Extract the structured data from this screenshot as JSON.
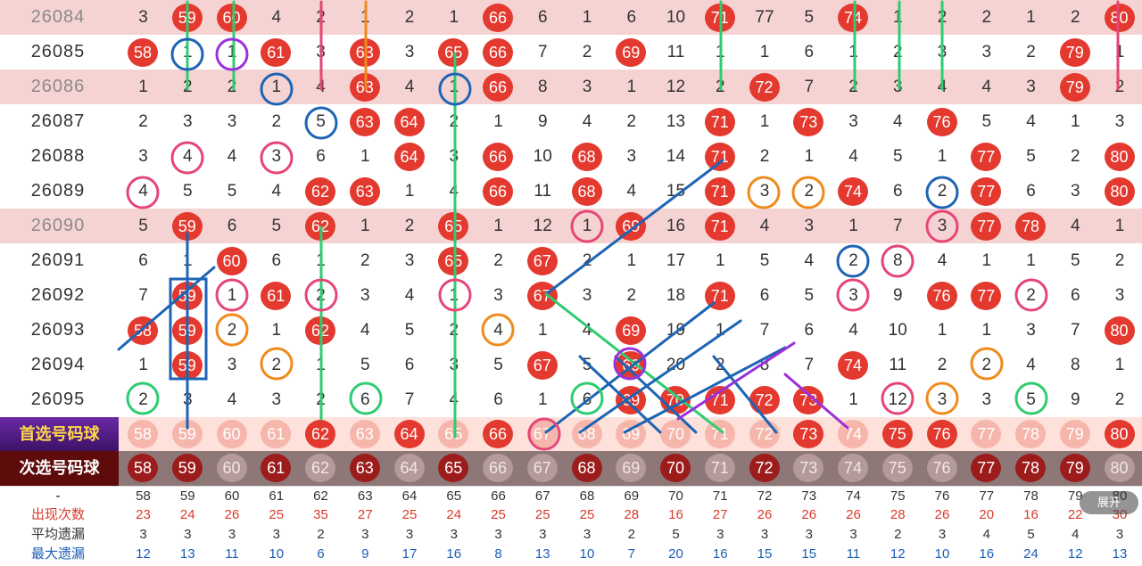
{
  "columns": [
    "58",
    "59",
    "60",
    "61",
    "62",
    "63",
    "64",
    "65",
    "66",
    "67",
    "68",
    "69",
    "70",
    "71",
    "72",
    "73",
    "74",
    "75",
    "76",
    "77",
    "78",
    "79",
    "80"
  ],
  "rows": [
    {
      "period": "26084",
      "style": "pink",
      "cells": [
        "3",
        "59",
        "60",
        "4",
        "2",
        "1",
        "2",
        "1",
        "66",
        "6",
        "1",
        "6",
        "10",
        "71",
        "77",
        "5",
        "74",
        "1",
        "2",
        "2",
        "1",
        "2",
        "80"
      ]
    },
    {
      "period": "26085",
      "style": "white",
      "cells": [
        "58",
        "1",
        "1",
        "61",
        "3",
        "63",
        "3",
        "65",
        "66",
        "7",
        "2",
        "69",
        "11",
        "1",
        "1",
        "6",
        "1",
        "2",
        "3",
        "3",
        "2",
        "79",
        "1"
      ]
    },
    {
      "period": "26086",
      "style": "pink",
      "cells": [
        "1",
        "2",
        "2",
        "1",
        "4",
        "63",
        "4",
        "1",
        "66",
        "8",
        "3",
        "1",
        "12",
        "2",
        "72",
        "7",
        "2",
        "3",
        "4",
        "4",
        "3",
        "79",
        "2"
      ]
    },
    {
      "period": "26087",
      "style": "white",
      "cells": [
        "2",
        "3",
        "3",
        "2",
        "5",
        "63",
        "64",
        "2",
        "1",
        "9",
        "4",
        "2",
        "13",
        "71",
        "1",
        "73",
        "3",
        "4",
        "76",
        "5",
        "4",
        "1",
        "3"
      ]
    },
    {
      "period": "26088",
      "style": "white",
      "cells": [
        "3",
        "4",
        "4",
        "3",
        "6",
        "1",
        "64",
        "3",
        "66",
        "10",
        "68",
        "3",
        "14",
        "71",
        "2",
        "1",
        "4",
        "5",
        "1",
        "77",
        "5",
        "2",
        "80"
      ]
    },
    {
      "period": "26089",
      "style": "white",
      "cells": [
        "4",
        "5",
        "5",
        "4",
        "62",
        "63",
        "1",
        "4",
        "66",
        "11",
        "68",
        "4",
        "15",
        "71",
        "3",
        "2",
        "74",
        "6",
        "2",
        "77",
        "6",
        "3",
        "80"
      ]
    },
    {
      "period": "26090",
      "style": "pink",
      "cells": [
        "5",
        "59",
        "6",
        "5",
        "62",
        "1",
        "2",
        "65",
        "1",
        "12",
        "1",
        "69",
        "16",
        "71",
        "4",
        "3",
        "1",
        "7",
        "3",
        "77",
        "78",
        "4",
        "1"
      ]
    },
    {
      "period": "26091",
      "style": "white",
      "cells": [
        "6",
        "1",
        "60",
        "6",
        "1",
        "2",
        "3",
        "65",
        "2",
        "67",
        "2",
        "1",
        "17",
        "1",
        "5",
        "4",
        "2",
        "8",
        "4",
        "1",
        "1",
        "5",
        "2"
      ]
    },
    {
      "period": "26092",
      "style": "white",
      "cells": [
        "7",
        "59",
        "1",
        "61",
        "2",
        "3",
        "4",
        "1",
        "3",
        "67",
        "3",
        "2",
        "18",
        "71",
        "6",
        "5",
        "3",
        "9",
        "76",
        "77",
        "2",
        "6",
        "3"
      ]
    },
    {
      "period": "26093",
      "style": "white",
      "cells": [
        "58",
        "59",
        "2",
        "1",
        "62",
        "4",
        "5",
        "2",
        "4",
        "1",
        "4",
        "69",
        "19",
        "1",
        "7",
        "6",
        "4",
        "10",
        "1",
        "1",
        "3",
        "7",
        "80"
      ]
    },
    {
      "period": "26094",
      "style": "white",
      "cells": [
        "1",
        "59",
        "3",
        "2",
        "1",
        "5",
        "6",
        "3",
        "5",
        "67",
        "5",
        "69",
        "20",
        "2",
        "8",
        "7",
        "74",
        "11",
        "2",
        "2",
        "4",
        "8",
        "1"
      ]
    },
    {
      "period": "26095",
      "style": "white",
      "cells": [
        "2",
        "3",
        "4",
        "3",
        "2",
        "6",
        "7",
        "4",
        "6",
        "1",
        "6",
        "69",
        "70",
        "71",
        "72",
        "73",
        "1",
        "12",
        "3",
        "3",
        "5",
        "9",
        "2"
      ]
    }
  ],
  "primary_row": {
    "label": "首选号码球",
    "cells": [
      "58",
      "59",
      "60",
      "61",
      "62",
      "63",
      "64",
      "65",
      "66",
      "67",
      "68",
      "69",
      "70",
      "71",
      "72",
      "73",
      "74",
      "75",
      "76",
      "77",
      "78",
      "79",
      "80"
    ],
    "highlight": [
      4,
      6,
      8,
      15,
      17,
      18,
      22
    ]
  },
  "secondary_row": {
    "label": "次选号码球",
    "cells": [
      "58",
      "59",
      "60",
      "61",
      "62",
      "63",
      "64",
      "65",
      "66",
      "67",
      "68",
      "69",
      "70",
      "71",
      "72",
      "73",
      "74",
      "75",
      "76",
      "77",
      "78",
      "79",
      "80"
    ],
    "highlight": [
      0,
      1,
      3,
      5,
      7,
      10,
      12,
      14,
      19,
      20,
      21
    ]
  },
  "stats": {
    "header_label": "-",
    "numbers": [
      "58",
      "59",
      "60",
      "61",
      "62",
      "63",
      "64",
      "65",
      "66",
      "67",
      "68",
      "69",
      "70",
      "71",
      "72",
      "73",
      "74",
      "75",
      "76",
      "77",
      "78",
      "79",
      "80"
    ],
    "rows": [
      {
        "label": "出现次数",
        "color": "#d93a2c",
        "values": [
          "23",
          "24",
          "26",
          "25",
          "35",
          "27",
          "25",
          "24",
          "25",
          "25",
          "25",
          "28",
          "16",
          "27",
          "26",
          "26",
          "26",
          "28",
          "26",
          "20",
          "16",
          "22",
          "30"
        ]
      },
      {
        "label": "平均遗漏",
        "color": "#333333",
        "values": [
          "3",
          "3",
          "3",
          "3",
          "2",
          "3",
          "3",
          "3",
          "3",
          "3",
          "3",
          "2",
          "5",
          "3",
          "3",
          "3",
          "3",
          "2",
          "3",
          "4",
          "5",
          "4",
          "3"
        ]
      },
      {
        "label": "最大遗漏",
        "color": "#1d5fb6",
        "values": [
          "12",
          "13",
          "11",
          "10",
          "6",
          "9",
          "17",
          "16",
          "8",
          "13",
          "10",
          "7",
          "20",
          "16",
          "15",
          "15",
          "11",
          "12",
          "10",
          "16",
          "24",
          "12",
          "13"
        ]
      }
    ]
  },
  "expand_label": "展开",
  "colors": {
    "ball": "#e3392f",
    "ball_dark": "#8a1f1f",
    "primary_bg": "#4a1c7a",
    "secondary_bg": "#6b0d0d"
  }
}
